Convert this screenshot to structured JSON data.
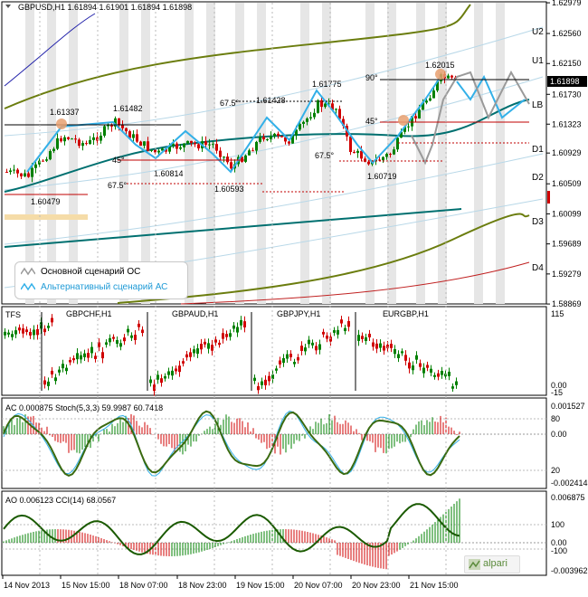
{
  "header": {
    "symbol_line": "GBPUSD,H1  1.61894 1.61901 1.61894 1.61898",
    "current_price": "1.61898"
  },
  "price_axis": [
    "1.62979",
    "1.62560",
    "1.62150",
    "1.61730",
    "1.61323",
    "1.60929",
    "1.60509",
    "1.60099",
    "1.59689",
    "1.59279",
    "1.58869"
  ],
  "levels": [
    "U2",
    "U1",
    "LB",
    "D1",
    "D2",
    "D3",
    "D4"
  ],
  "annotations": {
    "p1": "1.61337",
    "p2": "1.61482",
    "p3": "1.60814",
    "p4": "1.60479",
    "p5": "1.61428",
    "p6": "1.61775",
    "p7": "1.60593",
    "p8": "1.60719",
    "p9": "1.62015",
    "a1": "45°",
    "a2": "67.5°",
    "a3": "67.5°",
    "a4": "67.5°",
    "a5": "45°",
    "a6": "90°"
  },
  "legend": {
    "main": "Основной сценарий ОС",
    "alt": "Альтернативный сценарий АС"
  },
  "pair_panel": {
    "tfs": "TFS",
    "pairs": [
      "GBPCHF,H1",
      "GBPAUD,H1",
      "GBPJPY,H1",
      "EURGBP,H1"
    ],
    "top": "115",
    "bottom": "0.00",
    "neg": "-15"
  },
  "ac_panel": {
    "label": "AC 0.000875  Stoch(5,3,3) 59.9987 60.7418",
    "ticks": [
      "0.001527",
      "80",
      "0.00",
      "20",
      "-0.002414"
    ]
  },
  "ao_panel": {
    "label": "AO 0.006123  CCI(14) 68.0567",
    "ticks": [
      "0.006875",
      "100",
      "0.00",
      "-100",
      "-0.003962"
    ]
  },
  "time_axis": [
    "14 Nov 2013",
    "15 Nov 15:00",
    "18 Nov 07:00",
    "18 Nov 23:00",
    "19 Nov 15:00",
    "20 Nov 07:00",
    "20 Nov 23:00",
    "21 Nov 15:00"
  ],
  "brand": "alpari",
  "colors": {
    "bull": "#008000",
    "bear": "#d00000",
    "teal": "#007070",
    "olive": "#6b7d0e",
    "blue_scenario": "#33b0e8",
    "gray_scenario": "#9a9a9a"
  },
  "chart_data": {
    "type": "candlestick",
    "symbol": "GBPUSD",
    "timeframe": "H1",
    "ylim": [
      1.5887,
      1.6298
    ],
    "ohlc_last": {
      "open": 1.61894,
      "high": 1.61901,
      "low": 1.61894,
      "close": 1.61898
    },
    "swing_points": [
      {
        "label": "1.60479",
        "value": 1.60479
      },
      {
        "label": "1.61337",
        "value": 1.61337
      },
      {
        "label": "1.61482",
        "value": 1.61482
      },
      {
        "label": "1.60814",
        "value": 1.60814
      },
      {
        "label": "1.60593",
        "value": 1.60593
      },
      {
        "label": "1.61428",
        "value": 1.61428
      },
      {
        "label": "1.61775",
        "value": 1.61775
      },
      {
        "label": "1.60719",
        "value": 1.60719
      },
      {
        "label": "1.62015",
        "value": 1.62015
      }
    ],
    "x_ticks": [
      "14 Nov 2013",
      "15 Nov 15:00",
      "18 Nov 07:00",
      "18 Nov 23:00",
      "19 Nov 15:00",
      "20 Nov 07:00",
      "20 Nov 23:00",
      "21 Nov 15:00"
    ]
  }
}
